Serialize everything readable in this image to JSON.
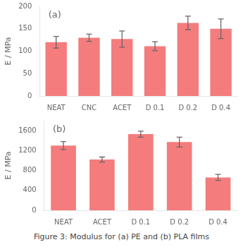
{
  "chart_data": [
    {
      "type": "bar",
      "categories": [
        "NEAT",
        "CNC",
        "ACET",
        "D 0.1",
        "D 0.2",
        "D 0.4"
      ],
      "values": [
        120,
        130,
        127,
        111,
        163,
        150
      ],
      "errors": [
        13,
        8,
        18,
        10,
        15,
        22
      ],
      "color": "#f47c7c",
      "y_label": "E / MPa",
      "ylim": [
        0,
        200
      ],
      "yticks": [
        0,
        50,
        100,
        150,
        200
      ],
      "annotations": [
        "(a)"
      ],
      "grid": false
    },
    {
      "type": "bar",
      "categories": [
        "NEAT",
        "ACET",
        "D 0.1",
        "D 0.2",
        "D 0.4"
      ],
      "values": [
        1300,
        1020,
        1530,
        1370,
        660
      ],
      "errors": [
        80,
        50,
        60,
        100,
        60
      ],
      "color": "#f47c7c",
      "y_label": "E / MPa",
      "ylim": [
        0,
        1800
      ],
      "yticks": [
        0,
        400,
        800,
        1200,
        1600
      ],
      "annotations": [
        "(b)"
      ],
      "grid": false
    }
  ],
  "caption": "Figure 3: Modulus for (a) PE and (b) PLA films"
}
